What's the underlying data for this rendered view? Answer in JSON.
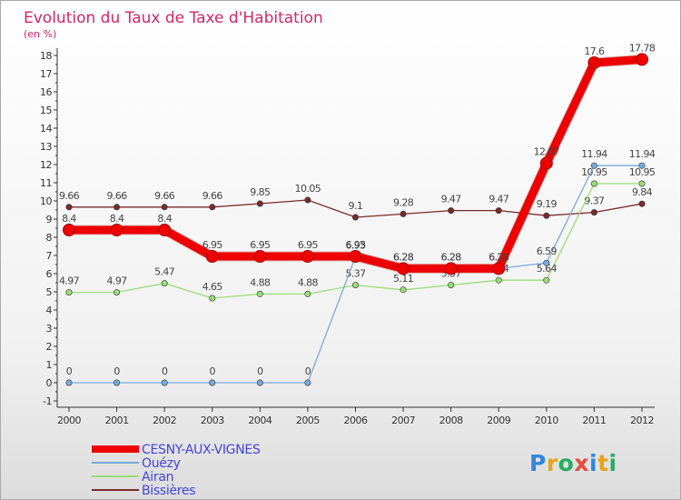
{
  "chart_data": {
    "type": "line",
    "title": "Evolution du Taux de Taxe d'Habitation",
    "subtitle": "(en %)",
    "xlabel": "",
    "ylabel": "",
    "categories": [
      "2000",
      "2001",
      "2002",
      "2003",
      "2004",
      "2005",
      "2006",
      "2007",
      "2008",
      "2009",
      "2010",
      "2011",
      "2012"
    ],
    "y_ticks": [
      "-1",
      "0",
      "1",
      "2",
      "3",
      "4",
      "5",
      "6",
      "7",
      "8",
      "9",
      "10",
      "11",
      "12",
      "13",
      "14",
      "15",
      "16",
      "17",
      "18"
    ],
    "ylim": [
      -1,
      18
    ],
    "grid": false,
    "legend_position": "bottom-left",
    "series": [
      {
        "name": "Bissières",
        "color": "#7a2a2a",
        "values": [
          9.66,
          9.66,
          9.66,
          9.66,
          9.85,
          10.05,
          9.1,
          9.28,
          9.47,
          9.47,
          9.19,
          9.37,
          9.84
        ],
        "labels": [
          "9.66",
          "9.66",
          "9.66",
          "9.66",
          "9.85",
          "10.05",
          "9.1",
          "9.28",
          "9.47",
          "9.47",
          "9.19",
          "9.37",
          "9.84"
        ]
      },
      {
        "name": "Airan",
        "color": "#99dd77",
        "values": [
          4.97,
          4.97,
          5.47,
          4.65,
          4.88,
          4.88,
          5.37,
          5.11,
          5.37,
          5.64,
          5.64,
          10.95,
          10.95
        ],
        "labels": [
          "4.97",
          "4.97",
          "5.47",
          "4.65",
          "4.88",
          "4.88",
          "5.37",
          "5.11",
          "5.37",
          "5.64",
          "5.64",
          "10.95",
          "10.95"
        ]
      },
      {
        "name": "Ouézy",
        "color": "#77aadd",
        "values": [
          0,
          0,
          0,
          0,
          0,
          0,
          6.93,
          6.28,
          6.28,
          6.28,
          6.59,
          11.94,
          11.94
        ],
        "labels": [
          "0",
          "0",
          "0",
          "0",
          "0",
          "0",
          "6.93",
          "6.28",
          "6.28",
          "6.28",
          "6.59",
          "11.94",
          "11.94"
        ]
      },
      {
        "name": "CESNY-AUX-VIGNES",
        "color": "#ee0000",
        "values": [
          8.4,
          8.4,
          8.4,
          6.95,
          6.95,
          6.95,
          6.95,
          6.28,
          6.28,
          6.28,
          12.07,
          17.6,
          17.78
        ],
        "labels": [
          "8.4",
          "8.4",
          "8.4",
          "6.95",
          "6.95",
          "6.95",
          "6.95",
          "6.28",
          "6.28",
          "6.28",
          "12.07",
          "17.6",
          "17.78"
        ]
      }
    ]
  },
  "legend_items": [
    {
      "label": "CESNY-AUX-VIGNES",
      "color": "#ee0000"
    },
    {
      "label": "Ouézy",
      "color": "#77aadd"
    },
    {
      "label": "Airan",
      "color": "#99dd77"
    },
    {
      "label": "Bissières",
      "color": "#7a2a2a"
    }
  ],
  "logo": {
    "text": "Proxiti",
    "letters": [
      "P",
      "r",
      "o",
      "x",
      "i",
      "t",
      "i"
    ],
    "colors": [
      "#2e86de",
      "#e8a317",
      "#27ae60",
      "#e74c3c",
      "#2e86de",
      "#e8a317",
      "#27ae60"
    ]
  }
}
